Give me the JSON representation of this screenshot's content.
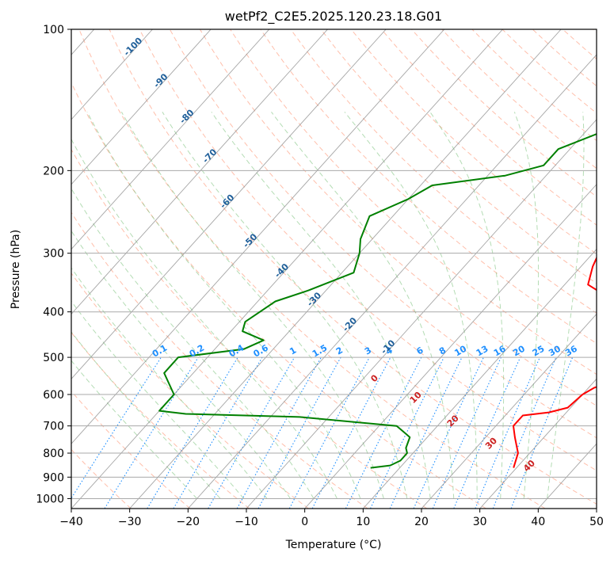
{
  "chart_data": {
    "type": "line",
    "title": "wetPf2_C2E5.2025.120.23.18.G01",
    "xlabel": "Temperature (°C)",
    "ylabel": "Pressure (hPa)",
    "xlim": [
      -40,
      50
    ],
    "ylim_pressure": [
      1050,
      100
    ],
    "y_scale": "log",
    "x_ticks": [
      "−40",
      "−30",
      "−20",
      "−10",
      "0",
      "10",
      "20",
      "30",
      "40",
      "50"
    ],
    "y_ticks": [
      "100",
      "200",
      "300",
      "400",
      "500",
      "600",
      "700",
      "800",
      "900",
      "1000"
    ],
    "grid": true,
    "colors": {
      "temperature": "#ff0000",
      "dewpoint": "#008000",
      "isotherm": "#888888",
      "dry_adiabat": "#ff8a66",
      "moist_adiabat": "#77c077",
      "mixing_ratio": "#1e8fff",
      "dry_label": "#1f6fb0",
      "moist_label": "#cc2222"
    },
    "series": [
      {
        "role": "temperature",
        "points": [
          [
            29.5,
            860
          ],
          [
            28,
            800
          ],
          [
            25,
            740
          ],
          [
            23,
            700
          ],
          [
            23,
            665
          ],
          [
            27,
            655
          ],
          [
            29.5,
            640
          ],
          [
            30,
            600
          ],
          [
            31,
            580
          ],
          [
            34,
            560
          ],
          [
            31,
            520
          ],
          [
            29,
            500
          ],
          [
            29,
            480
          ],
          [
            33,
            450
          ],
          [
            34,
            430
          ],
          [
            28,
            400
          ],
          [
            20,
            375
          ],
          [
            14,
            350
          ],
          [
            12,
            320
          ],
          [
            11,
            300
          ],
          [
            8,
            270
          ],
          [
            5,
            240
          ],
          [
            2,
            210
          ],
          [
            1,
            195
          ],
          [
            -1,
            175
          ],
          [
            -1,
            165
          ],
          [
            -1,
            150
          ],
          [
            -6,
            100
          ]
        ]
      },
      {
        "role": "dewpoint",
        "points": [
          [
            5,
            860
          ],
          [
            8,
            850
          ],
          [
            9,
            830
          ],
          [
            9,
            800
          ],
          [
            8,
            780
          ],
          [
            7,
            740
          ],
          [
            3,
            700
          ],
          [
            -15,
            670
          ],
          [
            -35,
            660
          ],
          [
            -40,
            650
          ],
          [
            -40,
            600
          ],
          [
            -45,
            540
          ],
          [
            -45,
            500
          ],
          [
            -35,
            480
          ],
          [
            -33,
            460
          ],
          [
            -38,
            440
          ],
          [
            -39,
            420
          ],
          [
            -37,
            380
          ],
          [
            -33,
            360
          ],
          [
            -28,
            330
          ],
          [
            -30,
            300
          ],
          [
            -32,
            280
          ],
          [
            -34,
            250
          ],
          [
            -30,
            230
          ],
          [
            -28,
            215
          ],
          [
            -17,
            205
          ],
          [
            -12,
            195
          ],
          [
            -12,
            180
          ],
          [
            -7,
            165
          ],
          [
            -3,
            150
          ],
          [
            -8,
            120
          ],
          [
            -5,
            100
          ]
        ]
      }
    ],
    "isotherm_labels": [
      "0",
      "10",
      "20",
      "30",
      "40"
    ],
    "dry_adiabat_labels": [
      "-100",
      "-90",
      "-80",
      "-70",
      "-60",
      "-50",
      "-40",
      "-30",
      "-20",
      "-10"
    ],
    "mixing_ratio_labels": [
      "0.1",
      "0.2",
      "0.4",
      "0.6",
      "1",
      "1.5",
      "2",
      "3",
      "4",
      "6",
      "8",
      "10",
      "13",
      "16",
      "20",
      "25",
      "30",
      "36"
    ],
    "moist_adiabat_labels": [
      "10",
      "20",
      "30",
      "40"
    ]
  }
}
